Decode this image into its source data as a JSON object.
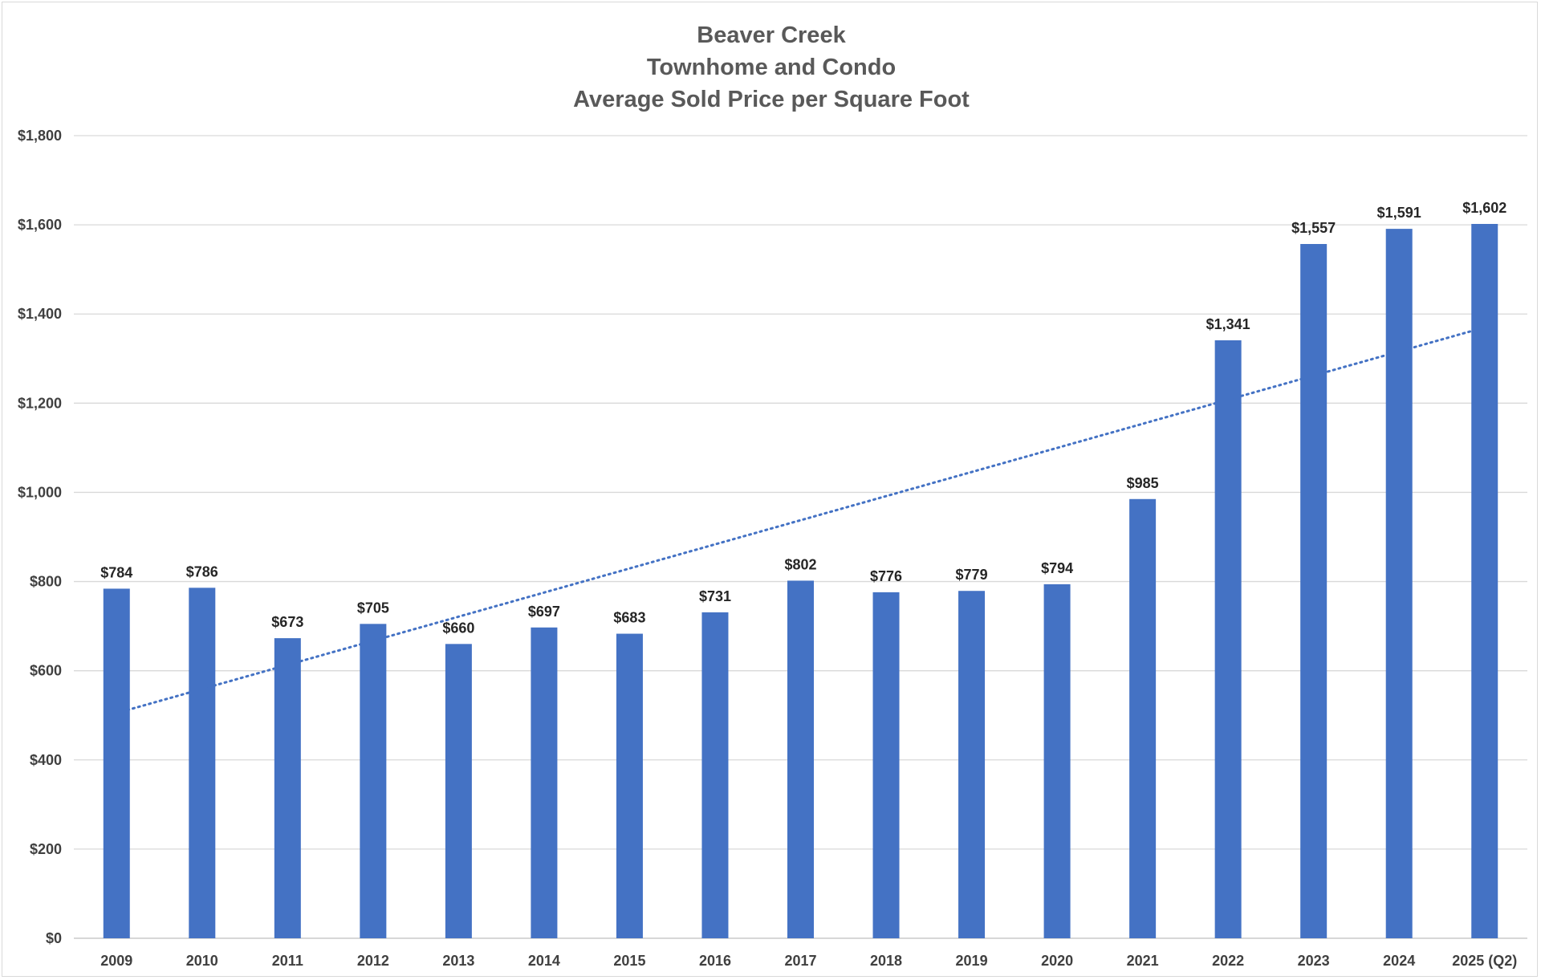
{
  "chart_data": {
    "type": "bar",
    "title": [
      "Beaver Creek",
      "Townhome and Condo",
      "Average Sold Price per Square Foot"
    ],
    "xlabel": "",
    "ylabel": "",
    "categories": [
      "2009",
      "2010",
      "2011",
      "2012",
      "2013",
      "2014",
      "2015",
      "2016",
      "2017",
      "2018",
      "2019",
      "2020",
      "2021",
      "2022",
      "2023",
      "2024",
      "2025 (Q2)"
    ],
    "values": [
      784,
      786,
      673,
      705,
      660,
      697,
      683,
      731,
      802,
      776,
      779,
      794,
      985,
      1341,
      1557,
      1591,
      1602
    ],
    "data_labels": [
      "$784",
      "$786",
      "$673",
      "$705",
      "$660",
      "$697",
      "$683",
      "$731",
      "$802",
      "$776",
      "$779",
      "$794",
      "$985",
      "$1,341",
      "$1,557",
      "$1,591",
      "$1,602"
    ],
    "ylim": [
      0,
      1800
    ],
    "yticks": [
      0,
      200,
      400,
      600,
      800,
      1000,
      1200,
      1400,
      1600,
      1800
    ],
    "ytick_labels": [
      "$0",
      "$200",
      "$400",
      "$600",
      "$800",
      "$1,000",
      "$1,200",
      "$1,400",
      "$1,600",
      "$1,800"
    ],
    "trendline": {
      "type": "linear",
      "style": "dotted",
      "start": 505,
      "end": 1370
    },
    "grid": true,
    "legend": "none",
    "colors": {
      "bar": "#4472c4",
      "trendline": "#4472c4",
      "gridline": "#d9d9d9",
      "title": "#595959"
    }
  }
}
